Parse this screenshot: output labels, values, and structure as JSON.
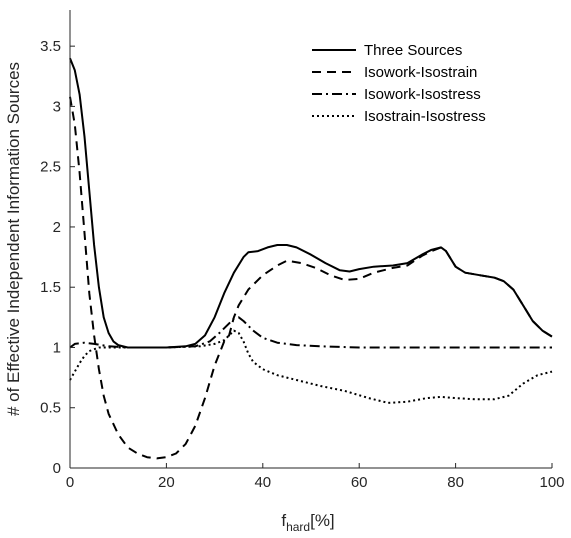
{
  "chart_data": {
    "type": "line",
    "title": "",
    "xlabel_main": "f",
    "xlabel_sub": "hard",
    "xlabel_tail": "[%]",
    "ylabel": "# of Effective Independent Information Sources",
    "xlim": [
      0,
      100
    ],
    "ylim": [
      0,
      3.8
    ],
    "xticks": [
      "0",
      "20",
      "40",
      "60",
      "80",
      "100"
    ],
    "yticks": [
      "0",
      "0.5",
      "1",
      "1.5",
      "2",
      "2.5",
      "3",
      "3.5"
    ],
    "grid": false,
    "legend_position": "top-right",
    "series": [
      {
        "name": "Three Sources",
        "dash": "solid",
        "points": [
          [
            0,
            3.4
          ],
          [
            1,
            3.3
          ],
          [
            2,
            3.1
          ],
          [
            3,
            2.75
          ],
          [
            4,
            2.3
          ],
          [
            5,
            1.85
          ],
          [
            6,
            1.5
          ],
          [
            7,
            1.25
          ],
          [
            8,
            1.12
          ],
          [
            9,
            1.05
          ],
          [
            10,
            1.02
          ],
          [
            12,
            1.0
          ],
          [
            16,
            1.0
          ],
          [
            20,
            1.0
          ],
          [
            24,
            1.01
          ],
          [
            26,
            1.03
          ],
          [
            28,
            1.1
          ],
          [
            30,
            1.25
          ],
          [
            32,
            1.45
          ],
          [
            34,
            1.62
          ],
          [
            36,
            1.75
          ],
          [
            37,
            1.79
          ],
          [
            39,
            1.8
          ],
          [
            41,
            1.83
          ],
          [
            43,
            1.85
          ],
          [
            45,
            1.85
          ],
          [
            47,
            1.83
          ],
          [
            50,
            1.77
          ],
          [
            53,
            1.7
          ],
          [
            56,
            1.64
          ],
          [
            58,
            1.63
          ],
          [
            60,
            1.65
          ],
          [
            63,
            1.67
          ],
          [
            67,
            1.68
          ],
          [
            70,
            1.7
          ],
          [
            73,
            1.77
          ],
          [
            75,
            1.81
          ],
          [
            77,
            1.83
          ],
          [
            78,
            1.8
          ],
          [
            80,
            1.67
          ],
          [
            82,
            1.62
          ],
          [
            85,
            1.6
          ],
          [
            88,
            1.58
          ],
          [
            90,
            1.55
          ],
          [
            92,
            1.48
          ],
          [
            94,
            1.35
          ],
          [
            96,
            1.22
          ],
          [
            98,
            1.14
          ],
          [
            100,
            1.09
          ]
        ]
      },
      {
        "name": "Isowork-Isostrain",
        "dash": "dashed",
        "points": [
          [
            0,
            3.08
          ],
          [
            1,
            2.85
          ],
          [
            2,
            2.45
          ],
          [
            3,
            1.95
          ],
          [
            4,
            1.45
          ],
          [
            5,
            1.1
          ],
          [
            6,
            0.82
          ],
          [
            7,
            0.6
          ],
          [
            8,
            0.45
          ],
          [
            10,
            0.28
          ],
          [
            12,
            0.17
          ],
          [
            14,
            0.12
          ],
          [
            16,
            0.09
          ],
          [
            18,
            0.08
          ],
          [
            20,
            0.09
          ],
          [
            22,
            0.12
          ],
          [
            24,
            0.2
          ],
          [
            26,
            0.35
          ],
          [
            28,
            0.58
          ],
          [
            30,
            0.85
          ],
          [
            32,
            1.05
          ],
          [
            33,
            1.1
          ],
          [
            34,
            1.25
          ],
          [
            35,
            1.35
          ],
          [
            37,
            1.48
          ],
          [
            40,
            1.6
          ],
          [
            43,
            1.68
          ],
          [
            45,
            1.72
          ],
          [
            48,
            1.7
          ],
          [
            51,
            1.66
          ],
          [
            54,
            1.6
          ],
          [
            57,
            1.56
          ],
          [
            60,
            1.57
          ],
          [
            63,
            1.62
          ],
          [
            67,
            1.66
          ],
          [
            70,
            1.68
          ],
          [
            73,
            1.76
          ],
          [
            75,
            1.8
          ],
          [
            77,
            1.83
          ],
          [
            78,
            1.8
          ],
          [
            80,
            1.67
          ],
          [
            82,
            1.62
          ],
          [
            85,
            1.6
          ],
          [
            88,
            1.58
          ],
          [
            90,
            1.55
          ],
          [
            92,
            1.48
          ],
          [
            94,
            1.35
          ],
          [
            96,
            1.22
          ],
          [
            98,
            1.14
          ],
          [
            100,
            1.09
          ]
        ]
      },
      {
        "name": "Isowork-Isostress",
        "dash": "dashdot",
        "points": [
          [
            0,
            1.0
          ],
          [
            1,
            1.03
          ],
          [
            3,
            1.04
          ],
          [
            5,
            1.03
          ],
          [
            8,
            1.01
          ],
          [
            12,
            1.0
          ],
          [
            20,
            1.0
          ],
          [
            26,
            1.01
          ],
          [
            29,
            1.05
          ],
          [
            31,
            1.12
          ],
          [
            33,
            1.2
          ],
          [
            34,
            1.24
          ],
          [
            35,
            1.25
          ],
          [
            36,
            1.22
          ],
          [
            38,
            1.14
          ],
          [
            40,
            1.08
          ],
          [
            43,
            1.04
          ],
          [
            47,
            1.02
          ],
          [
            52,
            1.01
          ],
          [
            60,
            1.0
          ],
          [
            80,
            1.0
          ],
          [
            100,
            1.0
          ]
        ]
      },
      {
        "name": "Isostrain-Isostress",
        "dash": "dotted",
        "points": [
          [
            0,
            0.73
          ],
          [
            1,
            0.8
          ],
          [
            2,
            0.87
          ],
          [
            3,
            0.93
          ],
          [
            4,
            0.97
          ],
          [
            6,
            1.0
          ],
          [
            10,
            1.0
          ],
          [
            20,
            1.0
          ],
          [
            27,
            1.01
          ],
          [
            30,
            1.03
          ],
          [
            32,
            1.06
          ],
          [
            33,
            1.1
          ],
          [
            34,
            1.14
          ],
          [
            35,
            1.12
          ],
          [
            36,
            1.05
          ],
          [
            37,
            0.95
          ],
          [
            38,
            0.88
          ],
          [
            40,
            0.82
          ],
          [
            43,
            0.77
          ],
          [
            47,
            0.73
          ],
          [
            52,
            0.68
          ],
          [
            57,
            0.64
          ],
          [
            62,
            0.58
          ],
          [
            66,
            0.54
          ],
          [
            70,
            0.55
          ],
          [
            74,
            0.58
          ],
          [
            77,
            0.59
          ],
          [
            80,
            0.58
          ],
          [
            84,
            0.57
          ],
          [
            88,
            0.57
          ],
          [
            91,
            0.6
          ],
          [
            94,
            0.7
          ],
          [
            97,
            0.77
          ],
          [
            100,
            0.8
          ]
        ]
      }
    ]
  }
}
